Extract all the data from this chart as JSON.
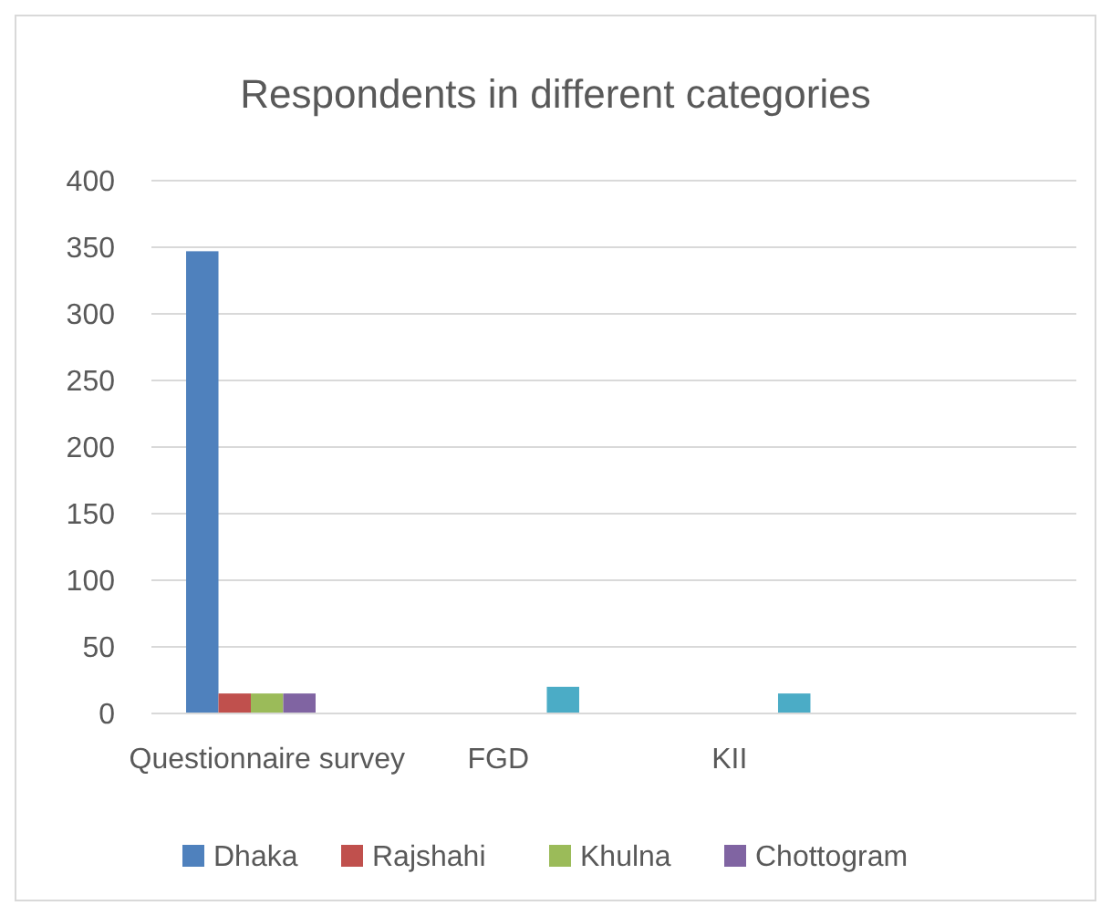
{
  "chart_data": {
    "type": "bar",
    "title": "Respondents in  different categories",
    "categories": [
      "Questionnaire survey",
      "FGD",
      "KII",
      null
    ],
    "series": [
      {
        "name": "Dhaka",
        "color": "#4f81bd",
        "values": [
          347,
          null,
          null,
          null
        ]
      },
      {
        "name": "Rajshahi",
        "color": "#c0504d",
        "values": [
          15,
          null,
          null,
          null
        ]
      },
      {
        "name": "Khulna",
        "color": "#9bbb59",
        "values": [
          15,
          null,
          null,
          null
        ]
      },
      {
        "name": "Chottogram",
        "color": "#8064a2",
        "values": [
          15,
          null,
          null,
          null
        ]
      },
      {
        "color": "#4bacc6",
        "values": [
          null,
          20,
          15,
          null
        ]
      }
    ],
    "ylim": [
      0,
      400
    ],
    "yticks": [
      0,
      50,
      100,
      150,
      200,
      250,
      300,
      350,
      400
    ],
    "grid": "y",
    "legend": "bottom"
  }
}
